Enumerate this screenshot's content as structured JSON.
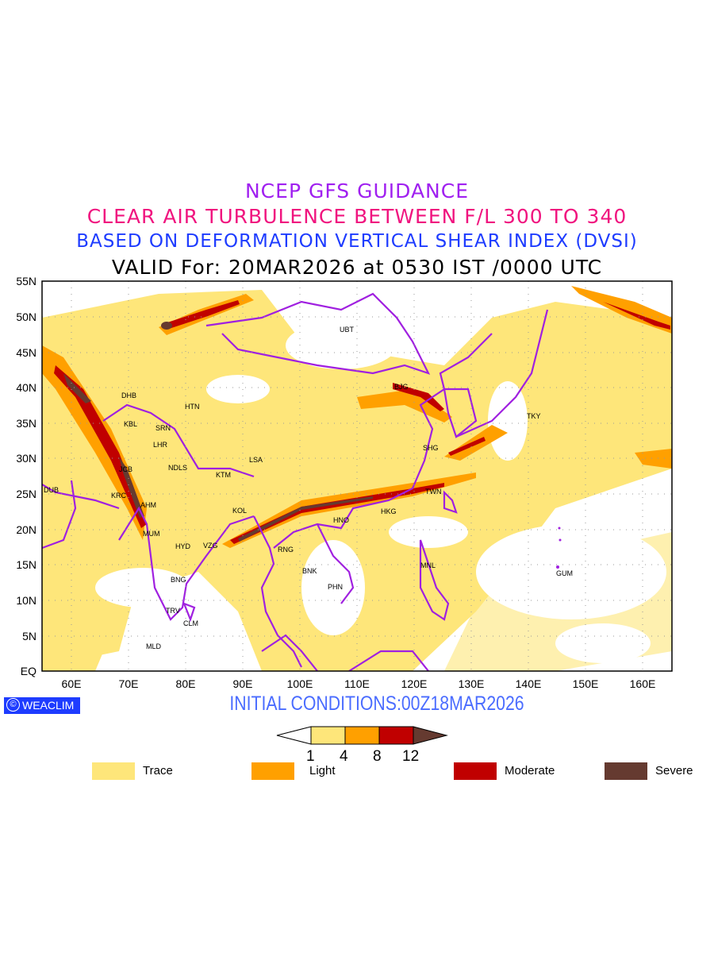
{
  "titles": {
    "line1": "NCEP GFS GUIDANCE",
    "line2": "CLEAR AIR TURBULENCE BETWEEN F/L 300 TO 340",
    "line3": "BASED ON DEFORMATION VERTICAL SHEAR INDEX (DVSI)",
    "line4": "VALID For: 20MAR2026 at 0530 IST /0000 UTC"
  },
  "axes": {
    "lat_labels": [
      "55N",
      "50N",
      "45N",
      "40N",
      "35N",
      "30N",
      "25N",
      "20N",
      "15N",
      "10N",
      "5N",
      "EQ"
    ],
    "lon_labels": [
      "60E",
      "70E",
      "80E",
      "90E",
      "100E",
      "110E",
      "120E",
      "130E",
      "140E",
      "150E",
      "160E"
    ]
  },
  "stations": [
    "UBT",
    "BJG",
    "TKY",
    "DHB",
    "HTN",
    "KBL",
    "SRN",
    "LHR",
    "LSA",
    "JCB",
    "NDLS",
    "KTM",
    "SHG",
    "DUB",
    "KRC",
    "AHM",
    "TWN",
    "KOL",
    "HNO",
    "HKG",
    "MUM",
    "HYD",
    "VZG",
    "RNG",
    "BNK",
    "MNL",
    "GUM",
    "BNG",
    "PHN",
    "TRV",
    "CLM",
    "MLD"
  ],
  "logo": "WEACLIM",
  "initial_conditions": "INITIAL CONDITIONS:00Z18MAR2026",
  "colorbar": {
    "ticks": [
      "1",
      "4",
      "8",
      "12"
    ],
    "colors": [
      "#fee67a",
      "#ffa000",
      "#c00000",
      "#653a30"
    ]
  },
  "legend": [
    {
      "label": "Trace",
      "color": "#fee67a"
    },
    {
      "label": "Light",
      "color": "#ffa000"
    },
    {
      "label": "Moderate",
      "color": "#c00000"
    },
    {
      "label": "Severe",
      "color": "#653a30"
    }
  ]
}
